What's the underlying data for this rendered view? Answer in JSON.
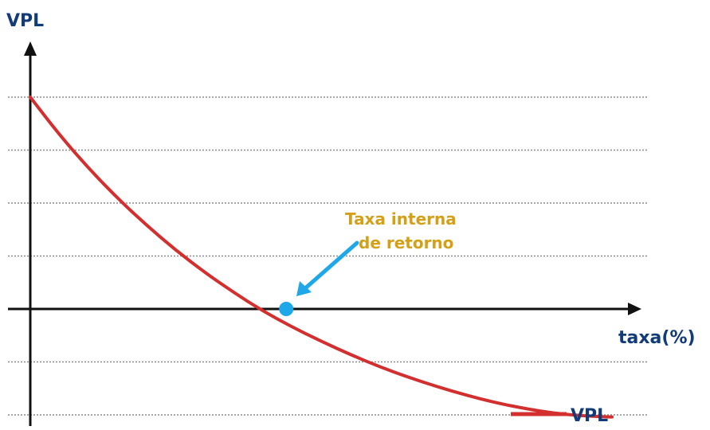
{
  "chart_data": {
    "type": "line",
    "title": "",
    "ylabel": "VPL",
    "xlabel": "taxa(%)",
    "ylim": [
      -2.2,
      4.0
    ],
    "xlim": [
      0,
      10
    ],
    "grid": true,
    "legend": "bottom-right",
    "series": [
      {
        "name": "VPL",
        "x": [
          0,
          0.5,
          1,
          1.5,
          2,
          2.5,
          3,
          3.5,
          4,
          4.5,
          5,
          5.5,
          6,
          6.5,
          7,
          7.5,
          8,
          8.5,
          9,
          9.5,
          10
        ],
        "y": [
          4.0,
          3.29,
          2.66,
          2.09,
          1.58,
          1.11,
          0.69,
          0.31,
          -0.04,
          -0.34,
          -0.61,
          -0.86,
          -1.09,
          -1.29,
          -1.47,
          -1.63,
          -1.77,
          -1.88,
          -1.97,
          -2.02,
          -2.04
        ]
      }
    ],
    "annotations": [
      {
        "text_line1": "Taxa interna",
        "text_line2": "de retorno",
        "x": 4.4,
        "y": 0
      }
    ]
  },
  "colors": {
    "curve": "#d32f2f",
    "point": "#1ea7e9",
    "arrow": "#1ea7e9",
    "annotation_text": "#d4a017",
    "axis_label": "#123c79",
    "axis": "#111111",
    "grid": "#8a8a8a"
  }
}
